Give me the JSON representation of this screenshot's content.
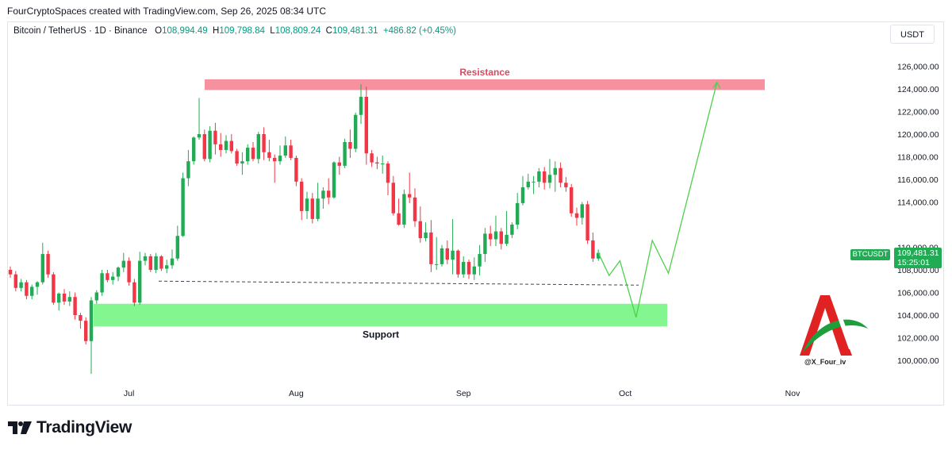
{
  "header": {
    "credit": "FourCryptoSpaces created with TradingView.com, Sep 26, 2025 08:34 UTC",
    "symbol": "Bitcoin / TetherUS · 1D · Binance",
    "open_label": "O",
    "open": "108,994.49",
    "high_label": "H",
    "high": "109,798.84",
    "low_label": "L",
    "low": "108,809.24",
    "close_label": "C",
    "close": "109,481.31",
    "change": "+486.82 (+0.45%)"
  },
  "currency_button": "USDT",
  "price_tag": {
    "symbol": "BTCUSDT",
    "price": "109,481.31",
    "countdown": "15:25:01"
  },
  "watermark": "@X_Four_iv",
  "brand": "TradingView",
  "colors": {
    "up": "#22ab55",
    "down": "#f23645",
    "resistance": "#f57f8e",
    "support": "#7cf58a",
    "projection": "#4cd14c"
  },
  "chart_data": {
    "type": "candlestick",
    "y_axis_labels": [
      "126,000.00",
      "124,000.00",
      "122,000.00",
      "120,000.00",
      "118,000.00",
      "116,000.00",
      "114,000.00",
      "110,000.00",
      "108,000.00",
      "106,000.00",
      "104,000.00",
      "102,000.00",
      "100,000.00"
    ],
    "x_axis_labels": [
      "Jul",
      "Aug",
      "Sep",
      "Oct",
      "Nov"
    ],
    "annotations": {
      "resistance": "Resistance",
      "support": "Support"
    },
    "resistance_zone": [
      123900,
      124850
    ],
    "support_zone": [
      103000,
      105000
    ],
    "support_line": 107000,
    "candles": [
      [
        108000,
        107600,
        108300,
        107300
      ],
      [
        107600,
        106400,
        107900,
        106100
      ],
      [
        106400,
        106900,
        107200,
        106100
      ],
      [
        106900,
        105700,
        107100,
        105400
      ],
      [
        105700,
        106500,
        106700,
        105400
      ],
      [
        106500,
        106900,
        107000,
        105800
      ],
      [
        106900,
        109400,
        110400,
        106700
      ],
      [
        109400,
        107600,
        109700,
        107300
      ],
      [
        107600,
        105100,
        107800,
        104900
      ],
      [
        105100,
        105900,
        106000,
        104400
      ],
      [
        105900,
        105200,
        106300,
        104900
      ],
      [
        105200,
        105600,
        106100,
        104800
      ],
      [
        105600,
        104000,
        106000,
        103600
      ],
      [
        104000,
        103500,
        104200,
        102800
      ],
      [
        103500,
        101700,
        103800,
        101400
      ],
      [
        101700,
        105300,
        105600,
        98800
      ],
      [
        105300,
        106000,
        106200,
        105000
      ],
      [
        106000,
        107700,
        108000,
        105700
      ],
      [
        107700,
        107100,
        108000,
        106900
      ],
      [
        107100,
        107400,
        107800,
        106700
      ],
      [
        107400,
        108200,
        108300,
        107000
      ],
      [
        108200,
        108800,
        109500,
        107800
      ],
      [
        108800,
        106900,
        109100,
        106600
      ],
      [
        106900,
        105100,
        107200,
        104800
      ],
      [
        105100,
        108800,
        109600,
        104900
      ],
      [
        108800,
        109200,
        109500,
        108400
      ],
      [
        109200,
        108000,
        109400,
        107800
      ],
      [
        108000,
        109200,
        109500,
        107700
      ],
      [
        109200,
        108100,
        109300,
        107900
      ],
      [
        108100,
        108400,
        108900,
        107700
      ],
      [
        108400,
        109000,
        109800,
        108100
      ],
      [
        109000,
        111000,
        111900,
        108800
      ],
      [
        111000,
        116100,
        116600,
        110900
      ],
      [
        116100,
        117600,
        118600,
        115400
      ],
      [
        117600,
        119700,
        119800,
        117300
      ],
      [
        119700,
        120000,
        123200,
        119500
      ],
      [
        120000,
        117800,
        120400,
        117600
      ],
      [
        117800,
        120300,
        120700,
        117500
      ],
      [
        120300,
        119100,
        121000,
        118200
      ],
      [
        119100,
        118600,
        120100,
        118000
      ],
      [
        118600,
        119400,
        119900,
        118300
      ],
      [
        119400,
        118500,
        120000,
        118300
      ],
      [
        118500,
        117400,
        118700,
        117200
      ],
      [
        117400,
        117600,
        118400,
        116400
      ],
      [
        117600,
        118800,
        119100,
        117300
      ],
      [
        118800,
        117800,
        119300,
        117600
      ],
      [
        117800,
        120000,
        120200,
        117400
      ],
      [
        120000,
        118400,
        120600,
        117700
      ],
      [
        118400,
        117900,
        119500,
        117600
      ],
      [
        117900,
        117600,
        118200,
        115700
      ],
      [
        117600,
        118100,
        119000,
        117300
      ],
      [
        118100,
        119000,
        119800,
        117900
      ],
      [
        119000,
        117900,
        119500,
        117700
      ],
      [
        117900,
        115800,
        118100,
        115400
      ],
      [
        115800,
        113200,
        116100,
        112400
      ],
      [
        113200,
        114300,
        114900,
        112500
      ],
      [
        114300,
        112500,
        114800,
        112100
      ],
      [
        112500,
        114300,
        115700,
        112300
      ],
      [
        114300,
        115000,
        115300,
        113400
      ],
      [
        115000,
        114400,
        116100,
        113800
      ],
      [
        114400,
        117500,
        117600,
        114300
      ],
      [
        117500,
        117200,
        118000,
        116400
      ],
      [
        117200,
        119300,
        119600,
        117000
      ],
      [
        119300,
        118700,
        120400,
        117900
      ],
      [
        118700,
        121700,
        121900,
        118400
      ],
      [
        121700,
        123300,
        124400,
        120900
      ],
      [
        123300,
        118300,
        124200,
        117300
      ],
      [
        118300,
        117500,
        118600,
        117100
      ],
      [
        117500,
        117400,
        118000,
        116900
      ],
      [
        117400,
        117400,
        118100,
        116500
      ],
      [
        117400,
        115700,
        117600,
        114600
      ],
      [
        115700,
        113000,
        116300,
        112800
      ],
      [
        113000,
        112000,
        114300,
        111900
      ],
      [
        112000,
        114700,
        115100,
        111700
      ],
      [
        114700,
        114400,
        116600,
        113900
      ],
      [
        114400,
        112300,
        115200,
        111800
      ],
      [
        112300,
        110800,
        113600,
        110400
      ],
      [
        110800,
        111300,
        112200,
        110500
      ],
      [
        111300,
        108500,
        112400,
        107800
      ],
      [
        108500,
        108500,
        110900,
        108000
      ],
      [
        108500,
        109900,
        110200,
        108300
      ],
      [
        109900,
        108900,
        110600,
        108500
      ],
      [
        108900,
        109700,
        112500,
        107600
      ],
      [
        109700,
        107600,
        109800,
        107300
      ],
      [
        107600,
        108700,
        109200,
        107300
      ],
      [
        108700,
        107600,
        108900,
        107200
      ],
      [
        107600,
        108300,
        109100,
        107100
      ],
      [
        108300,
        109400,
        110200,
        107500
      ],
      [
        109400,
        111200,
        111700,
        108700
      ],
      [
        111200,
        110700,
        111900,
        110100
      ],
      [
        110700,
        111400,
        112800,
        110100
      ],
      [
        111400,
        110300,
        111700,
        109800
      ],
      [
        110300,
        111100,
        113200,
        110100
      ],
      [
        111100,
        112000,
        112200,
        110800
      ],
      [
        112000,
        113900,
        114800,
        111600
      ],
      [
        113900,
        115300,
        116300,
        113700
      ],
      [
        115300,
        115800,
        116500,
        115100
      ],
      [
        115800,
        115800,
        116300,
        114700
      ],
      [
        115800,
        116700,
        117000,
        115300
      ],
      [
        116700,
        115700,
        117100,
        115100
      ],
      [
        115700,
        116400,
        117800,
        115200
      ],
      [
        116400,
        117000,
        117600,
        114900
      ],
      [
        117000,
        115700,
        117500,
        115300
      ],
      [
        115700,
        115300,
        116200,
        114900
      ],
      [
        115300,
        113000,
        115600,
        112700
      ],
      [
        113000,
        112600,
        113500,
        111900
      ],
      [
        112600,
        113800,
        114000,
        112000
      ],
      [
        113800,
        110600,
        114100,
        110300
      ],
      [
        110600,
        109000,
        111300,
        108700
      ],
      [
        109000,
        109500,
        109800,
        108800
      ]
    ],
    "projection_path": [
      [
        109500,
        "2025-09-26"
      ],
      [
        107500,
        "2025-09-28"
      ],
      [
        108800,
        "2025-09-30"
      ],
      [
        103800,
        "2025-10-03"
      ],
      [
        110600,
        "2025-10-06"
      ],
      [
        107700,
        "2025-10-09"
      ],
      [
        124600,
        "2025-10-18"
      ]
    ]
  }
}
